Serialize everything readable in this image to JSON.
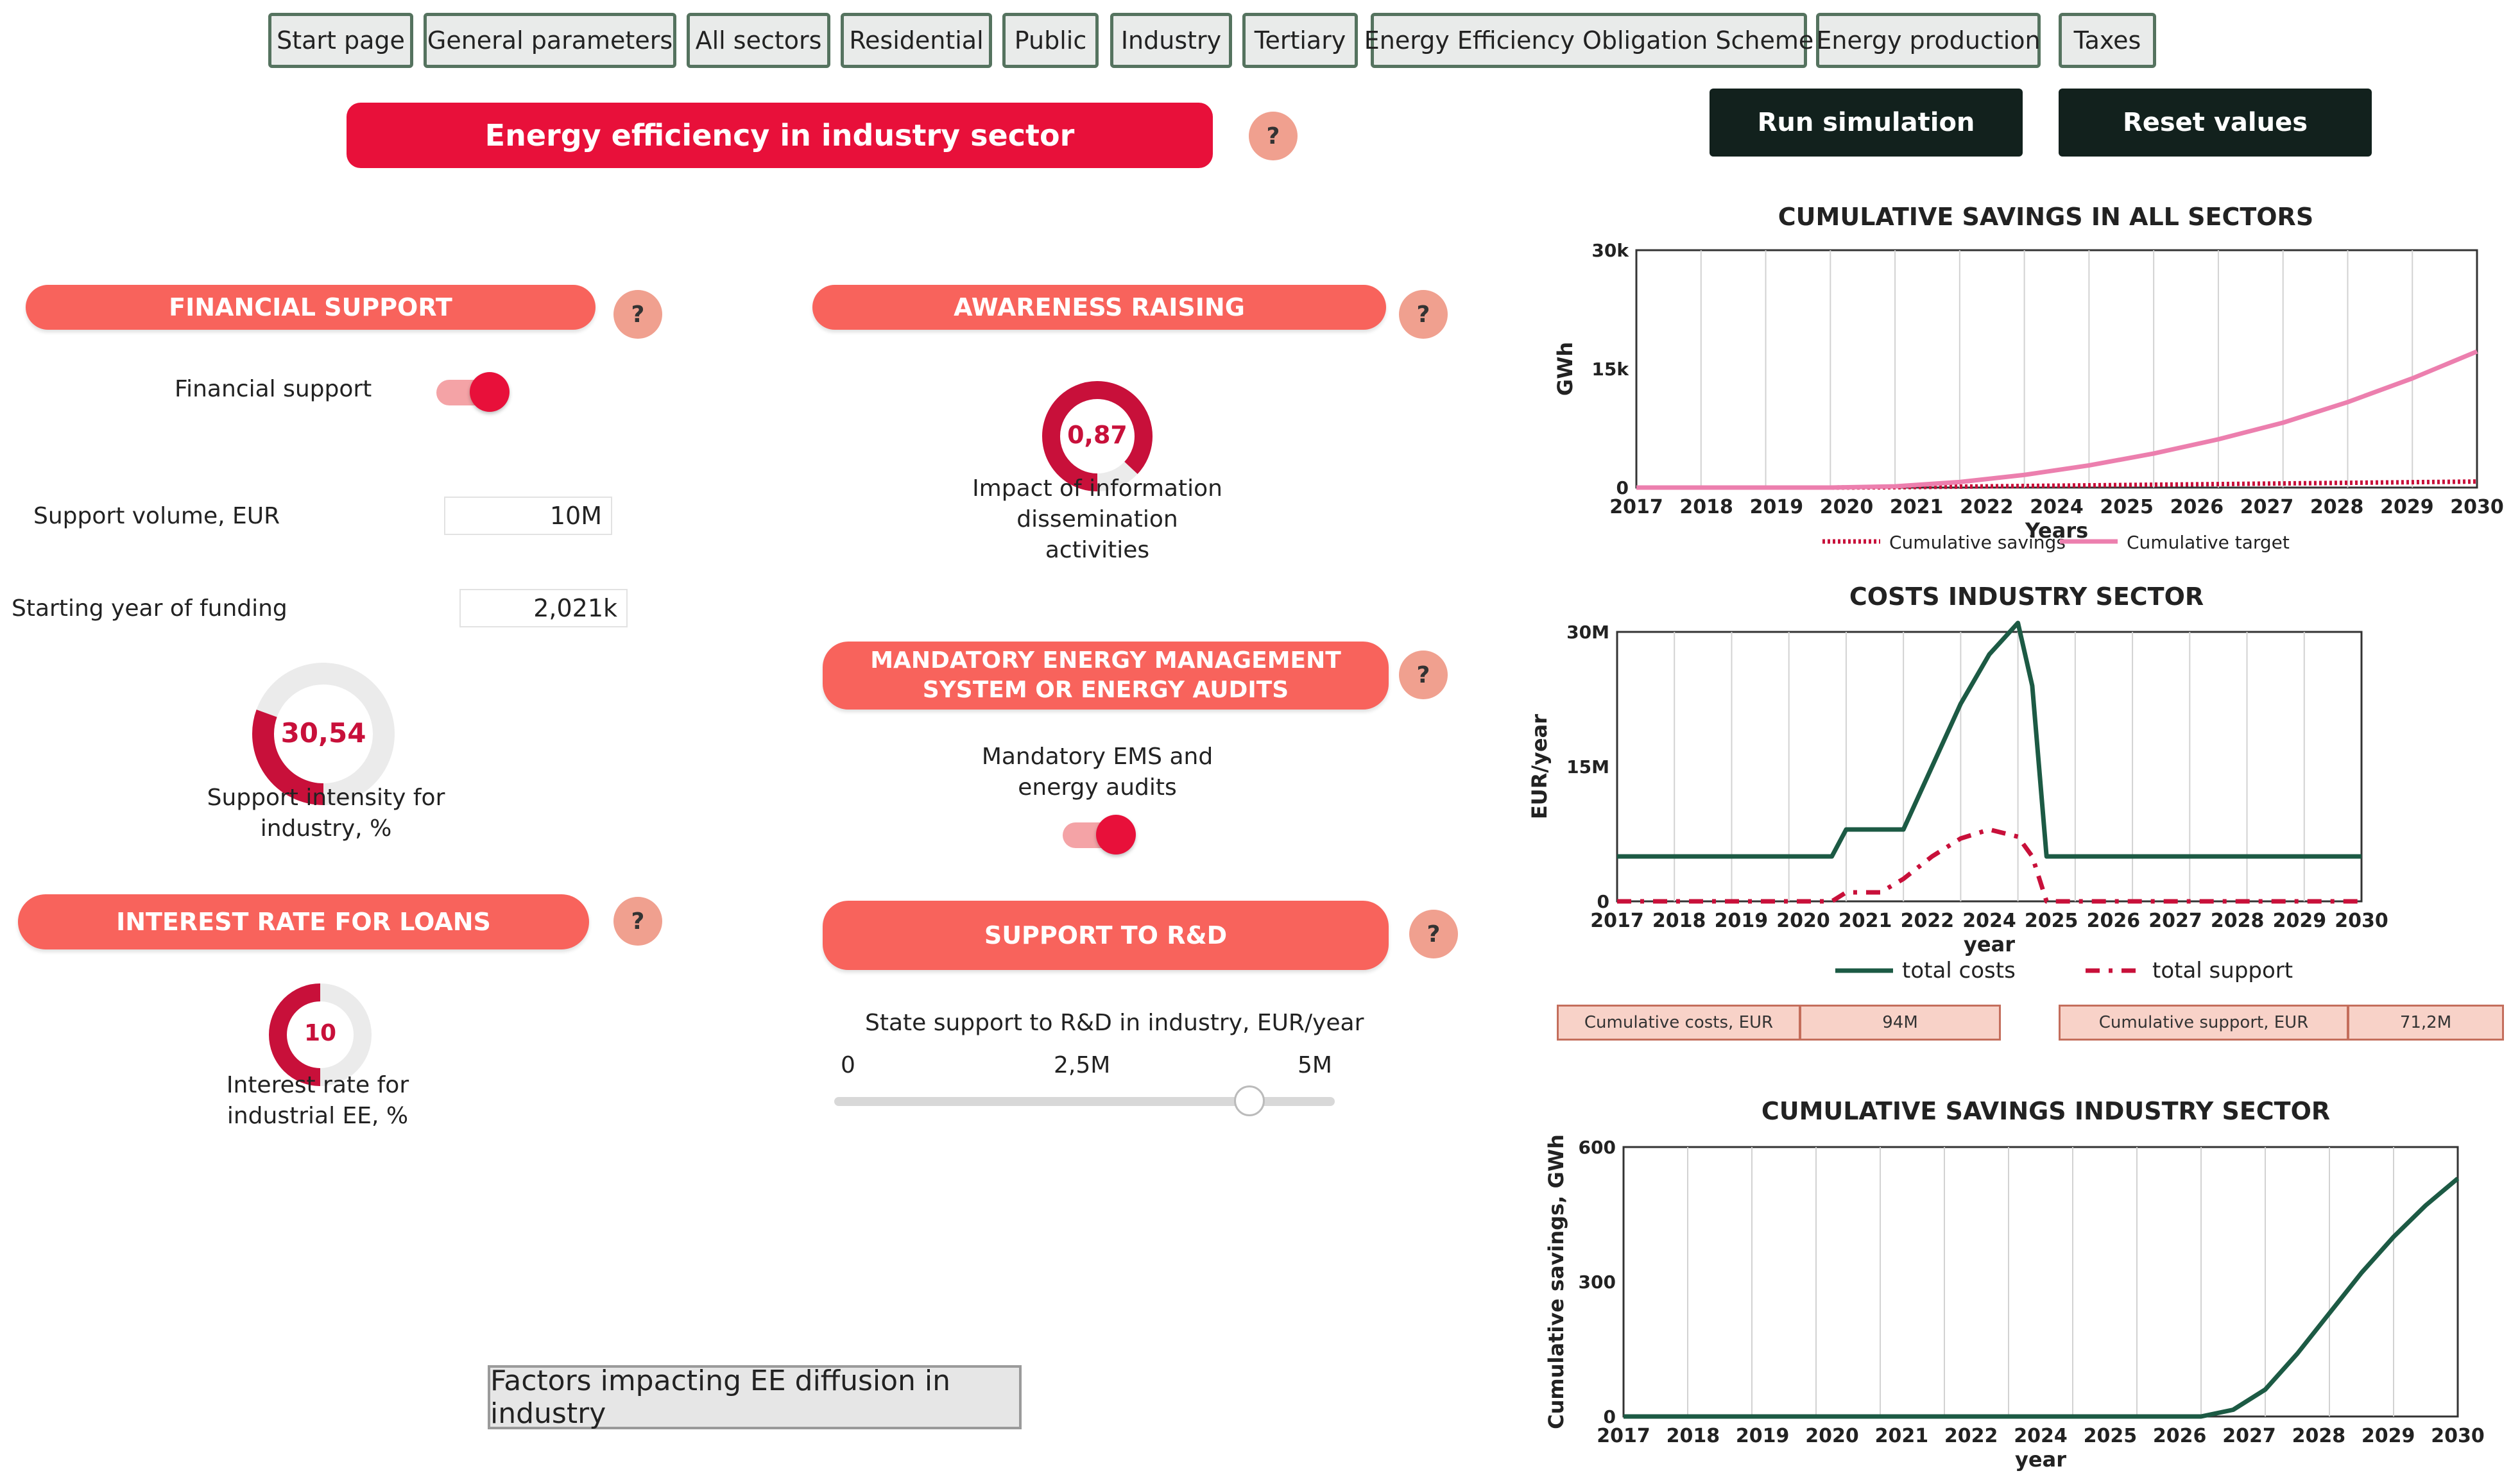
{
  "nav": {
    "tabs": [
      "Start page",
      "General parameters",
      "All sectors",
      "Residential",
      "Public",
      "Industry",
      "Tertiary",
      "Energy Efficiency Obligation Scheme",
      "Energy production",
      "Taxes"
    ]
  },
  "header": {
    "title": "Energy efficiency in industry sector",
    "help": "?",
    "run_label": "Run simulation",
    "reset_label": "Reset values"
  },
  "financial": {
    "section_title": "FINANCIAL SUPPORT",
    "toggle_label": "Financial support",
    "toggle_on": true,
    "support_volume_label": "Support volume, EUR",
    "support_volume_value": "10M",
    "start_year_label": "Starting year of funding",
    "start_year_value": "2,021k",
    "intensity_value": "30,54",
    "intensity_fraction": 0.3054,
    "intensity_label": "Support intensity for industry, %"
  },
  "interest": {
    "section_title": "INTEREST RATE FOR LOANS",
    "value": "10",
    "fraction": 0.5,
    "label": "Interest rate for industrial EE, %"
  },
  "awareness": {
    "section_title": "AWARENESS RAISING",
    "value": "0,87",
    "fraction": 0.87,
    "label": "Impact of information dissemination activities"
  },
  "ems": {
    "section_title": "MANDATORY ENERGY MANAGEMENT SYSTEM OR ENERGY AUDITS",
    "toggle_label": "Mandatory EMS and energy audits",
    "toggle_on": true
  },
  "rd": {
    "section_title": "SUPPORT TO R&D",
    "slider_label": "State support to R&D in industry, EUR/year",
    "tick_min": "0",
    "tick_mid": "2,5M",
    "tick_max": "5M",
    "slider_fraction": 0.83
  },
  "factors_button": "Factors impacting EE diffusion in industry",
  "summary": {
    "costs_label": "Cumulative costs, EUR",
    "costs_value": "94M",
    "support_label": "Cumulative support, EUR",
    "support_value": "71,2M"
  },
  "colors": {
    "accent_red": "#e8103a",
    "pill_salmon": "#f8635c",
    "dark_green": "#1c5a44",
    "pink_target": "#ec7fae",
    "crimson_savings": "#c8103a"
  },
  "chart_data": [
    {
      "type": "line",
      "title": "CUMULATIVE SAVINGS IN ALL SECTORS",
      "xlabel": "Years",
      "ylabel": "GWh",
      "x": [
        2017,
        2018,
        2019,
        2020,
        2021,
        2022,
        2023,
        2024,
        2025,
        2026,
        2027,
        2028,
        2029,
        2030
      ],
      "xtick_labels": [
        "2017",
        "2018",
        "2019",
        "2020",
        "2021",
        "2022",
        "2024",
        "2025",
        "2026",
        "2027",
        "2028",
        "2029",
        "2030"
      ],
      "ytick_labels": [
        "30k",
        "15k",
        "0"
      ],
      "ylim": [
        0,
        30000
      ],
      "series": [
        {
          "name": "Cumulative savings",
          "values": [
            0,
            0,
            0,
            0,
            40,
            120,
            200,
            280,
            360,
            440,
            520,
            600,
            680,
            760
          ]
        },
        {
          "name": "Cumulative target",
          "values": [
            0,
            0,
            0,
            0,
            150,
            700,
            1600,
            2800,
            4300,
            6100,
            8200,
            10800,
            13800,
            17200
          ]
        }
      ],
      "legend": "bottom",
      "grid": true
    },
    {
      "type": "line",
      "title": "COSTS INDUSTRY SECTOR",
      "xlabel": "year",
      "ylabel": "EUR/year",
      "x": [
        2017,
        2018,
        2019,
        2020,
        2020.75,
        2021,
        2021.6,
        2022,
        2022.5,
        2023,
        2023.5,
        2024,
        2024.25,
        2024.5,
        2025,
        2026,
        2027,
        2028,
        2029,
        2030
      ],
      "xtick_labels": [
        "2017",
        "2018",
        "2019",
        "2020",
        "2021",
        "2022",
        "2024",
        "2025",
        "2026",
        "2027",
        "2028",
        "2029",
        "2030"
      ],
      "ytick_labels": [
        "30M",
        "15M",
        "0"
      ],
      "ylim": [
        0,
        30000000
      ],
      "series": [
        {
          "name": "total costs",
          "values": [
            5000000,
            5000000,
            5000000,
            5000000,
            5000000,
            8000000,
            8000000,
            8000000,
            15000000,
            22000000,
            27500000,
            31000000,
            24000000,
            5000000,
            5000000,
            5000000,
            5000000,
            5000000,
            5000000,
            5000000
          ]
        },
        {
          "name": "total support",
          "values": [
            0,
            0,
            0,
            0,
            0,
            1000000,
            1000000,
            2500000,
            5000000,
            7000000,
            8000000,
            7200000,
            5000000,
            0,
            0,
            0,
            0,
            0,
            0,
            0
          ]
        }
      ],
      "legend": "bottom",
      "grid": true
    },
    {
      "type": "line",
      "title": "CUMULATIVE SAVINGS INDUSTRY SECTOR",
      "xlabel": "year",
      "ylabel": "Cumulative savings, GWh",
      "x": [
        2017,
        2018,
        2019,
        2020,
        2021,
        2022,
        2023,
        2024,
        2025,
        2026,
        2026.5,
        2027,
        2027.5,
        2028,
        2028.5,
        2029,
        2029.5,
        2030
      ],
      "xtick_labels": [
        "2017",
        "2018",
        "2019",
        "2020",
        "2021",
        "2022",
        "2024",
        "2025",
        "2026",
        "2027",
        "2028",
        "2029",
        "2030"
      ],
      "ytick_labels": [
        "600",
        "300",
        "0"
      ],
      "ylim": [
        0,
        600
      ],
      "series": [
        {
          "name": "Cumulative savings industry",
          "values": [
            0,
            0,
            0,
            0,
            0,
            0,
            0,
            0,
            0,
            0,
            15,
            60,
            140,
            230,
            320,
            400,
            470,
            530
          ]
        }
      ],
      "grid": true
    }
  ]
}
